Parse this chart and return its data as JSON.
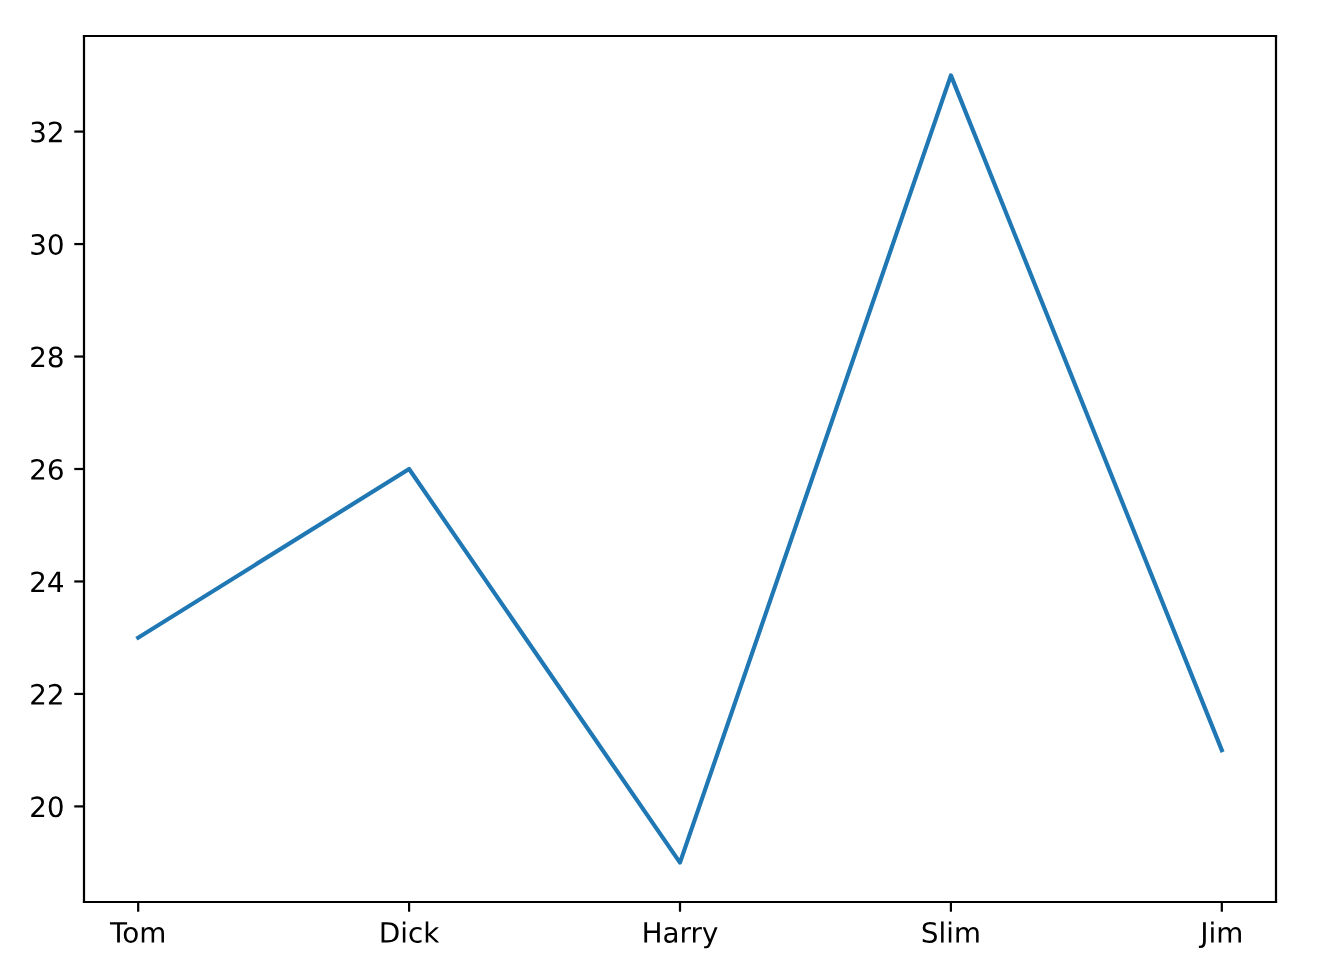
{
  "chart_data": {
    "type": "line",
    "categories": [
      "Tom",
      "Dick",
      "Harry",
      "Slim",
      "Jim"
    ],
    "series": [
      {
        "color": "#1f77b4",
        "values": [
          23,
          26,
          19,
          33,
          21
        ]
      }
    ],
    "ylim": [
      18.3,
      33.7
    ],
    "yticks": [
      20,
      22,
      24,
      26,
      28,
      30,
      32
    ],
    "grid": false,
    "legend": false,
    "marker": "none",
    "line_style": "solid"
  }
}
